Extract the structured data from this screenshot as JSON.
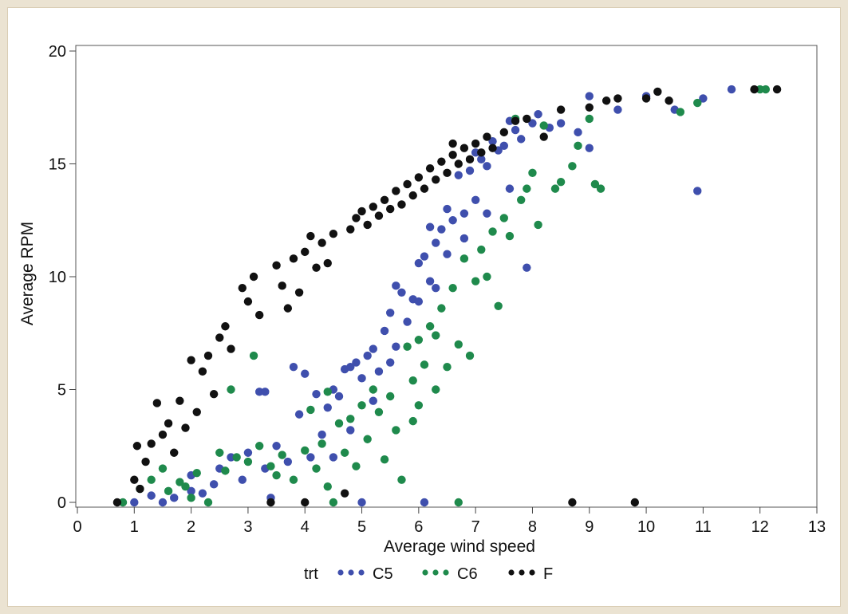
{
  "chart_data": {
    "type": "scatter",
    "title": "",
    "xlabel": "Average wind speed",
    "ylabel": "Average RPM",
    "xlim": [
      0,
      13
    ],
    "ylim": [
      0,
      20
    ],
    "x_ticks": [
      "0",
      "1",
      "2",
      "3",
      "4",
      "5",
      "6",
      "7",
      "8",
      "9",
      "10",
      "11",
      "12",
      "13"
    ],
    "y_ticks": [
      "0",
      "5",
      "10",
      "15",
      "20"
    ],
    "grid": false,
    "legend": {
      "title": "trt",
      "placement": "bottom",
      "entries": [
        "C5",
        "C6",
        "F"
      ]
    },
    "series": [
      {
        "name": "C5",
        "color": "#3f4fad",
        "points": [
          [
            1.0,
            0.0
          ],
          [
            1.3,
            0.3
          ],
          [
            1.5,
            0.0
          ],
          [
            1.7,
            0.2
          ],
          [
            2.0,
            0.5
          ],
          [
            2.2,
            0.4
          ],
          [
            2.4,
            0.8
          ],
          [
            2.5,
            1.5
          ],
          [
            2.7,
            2.0
          ],
          [
            2.9,
            1.0
          ],
          [
            3.0,
            2.2
          ],
          [
            3.3,
            1.5
          ],
          [
            3.4,
            0.2
          ],
          [
            3.5,
            2.5
          ],
          [
            3.7,
            1.8
          ],
          [
            3.8,
            6.0
          ],
          [
            3.2,
            4.9
          ],
          [
            3.9,
            3.9
          ],
          [
            4.0,
            5.7
          ],
          [
            4.1,
            2.0
          ],
          [
            4.2,
            4.8
          ],
          [
            4.3,
            3.0
          ],
          [
            4.4,
            4.2
          ],
          [
            4.5,
            5.0
          ],
          [
            4.6,
            4.7
          ],
          [
            4.7,
            5.9
          ],
          [
            4.8,
            6.0
          ],
          [
            4.9,
            6.2
          ],
          [
            5.0,
            5.5
          ],
          [
            5.1,
            6.5
          ],
          [
            5.2,
            6.8
          ],
          [
            5.3,
            5.8
          ],
          [
            5.4,
            7.6
          ],
          [
            5.5,
            8.4
          ],
          [
            5.5,
            6.2
          ],
          [
            5.6,
            9.6
          ],
          [
            5.7,
            9.3
          ],
          [
            5.8,
            8.0
          ],
          [
            5.9,
            9.0
          ],
          [
            6.0,
            10.6
          ],
          [
            6.0,
            8.9
          ],
          [
            6.1,
            10.9
          ],
          [
            6.2,
            9.8
          ],
          [
            6.2,
            12.2
          ],
          [
            6.3,
            11.5
          ],
          [
            6.4,
            12.1
          ],
          [
            6.5,
            11.0
          ],
          [
            6.5,
            13.0
          ],
          [
            6.6,
            12.5
          ],
          [
            6.7,
            14.5
          ],
          [
            6.8,
            12.8
          ],
          [
            6.9,
            14.7
          ],
          [
            7.0,
            13.4
          ],
          [
            7.0,
            15.5
          ],
          [
            7.1,
            15.2
          ],
          [
            7.2,
            14.9
          ],
          [
            7.3,
            16.0
          ],
          [
            7.4,
            15.6
          ],
          [
            7.5,
            15.8
          ],
          [
            7.6,
            16.9
          ],
          [
            7.7,
            16.5
          ],
          [
            7.8,
            16.1
          ],
          [
            7.9,
            10.4
          ],
          [
            8.0,
            16.8
          ],
          [
            8.1,
            17.2
          ],
          [
            8.3,
            16.6
          ],
          [
            8.5,
            16.8
          ],
          [
            8.8,
            16.4
          ],
          [
            9.0,
            15.7
          ],
          [
            9.0,
            18.0
          ],
          [
            9.5,
            17.4
          ],
          [
            10.0,
            18.0
          ],
          [
            10.5,
            17.4
          ],
          [
            10.9,
            13.8
          ],
          [
            11.0,
            17.9
          ],
          [
            11.5,
            18.3
          ],
          [
            3.3,
            4.9
          ],
          [
            2.0,
            1.2
          ],
          [
            5.0,
            0.0
          ],
          [
            6.1,
            0.0
          ],
          [
            4.5,
            2.0
          ],
          [
            4.8,
            3.2
          ],
          [
            5.2,
            4.5
          ],
          [
            5.6,
            6.9
          ],
          [
            6.3,
            9.5
          ],
          [
            6.8,
            11.7
          ],
          [
            7.2,
            12.8
          ],
          [
            7.6,
            13.9
          ]
        ]
      },
      {
        "name": "C6",
        "color": "#1f8a4c",
        "points": [
          [
            0.8,
            0.0
          ],
          [
            1.1,
            0.6
          ],
          [
            1.3,
            1.0
          ],
          [
            1.5,
            1.5
          ],
          [
            1.6,
            0.5
          ],
          [
            1.8,
            0.9
          ],
          [
            2.0,
            0.2
          ],
          [
            2.1,
            1.3
          ],
          [
            2.3,
            0.0
          ],
          [
            2.5,
            2.2
          ],
          [
            2.7,
            5.0
          ],
          [
            2.8,
            2.0
          ],
          [
            3.0,
            1.8
          ],
          [
            3.1,
            6.5
          ],
          [
            3.2,
            2.5
          ],
          [
            3.4,
            1.6
          ],
          [
            3.5,
            1.2
          ],
          [
            3.6,
            2.1
          ],
          [
            3.8,
            1.0
          ],
          [
            4.0,
            2.3
          ],
          [
            4.1,
            4.1
          ],
          [
            4.2,
            1.5
          ],
          [
            4.3,
            2.6
          ],
          [
            4.4,
            0.7
          ],
          [
            4.5,
            0.0
          ],
          [
            4.6,
            3.5
          ],
          [
            4.7,
            2.2
          ],
          [
            4.8,
            3.7
          ],
          [
            4.9,
            1.6
          ],
          [
            5.0,
            4.3
          ],
          [
            5.1,
            2.8
          ],
          [
            5.2,
            5.0
          ],
          [
            5.3,
            4.0
          ],
          [
            5.4,
            1.9
          ],
          [
            5.5,
            4.7
          ],
          [
            5.6,
            3.2
          ],
          [
            5.7,
            1.0
          ],
          [
            5.8,
            6.9
          ],
          [
            5.9,
            5.4
          ],
          [
            6.0,
            7.2
          ],
          [
            6.0,
            4.3
          ],
          [
            6.1,
            6.1
          ],
          [
            6.2,
            7.8
          ],
          [
            6.3,
            5.0
          ],
          [
            6.4,
            8.6
          ],
          [
            6.5,
            6.0
          ],
          [
            6.6,
            9.5
          ],
          [
            6.7,
            7.0
          ],
          [
            6.8,
            10.8
          ],
          [
            6.7,
            0.0
          ],
          [
            6.9,
            6.5
          ],
          [
            7.0,
            9.8
          ],
          [
            7.1,
            11.2
          ],
          [
            7.2,
            10.0
          ],
          [
            7.3,
            12.0
          ],
          [
            7.4,
            8.7
          ],
          [
            7.5,
            12.6
          ],
          [
            7.6,
            11.8
          ],
          [
            7.8,
            13.4
          ],
          [
            7.9,
            13.9
          ],
          [
            8.0,
            14.6
          ],
          [
            8.1,
            12.3
          ],
          [
            8.2,
            16.7
          ],
          [
            8.4,
            13.9
          ],
          [
            8.5,
            14.2
          ],
          [
            8.7,
            14.9
          ],
          [
            8.8,
            15.8
          ],
          [
            9.0,
            17.0
          ],
          [
            9.1,
            14.1
          ],
          [
            9.2,
            13.9
          ],
          [
            10.6,
            17.3
          ],
          [
            10.9,
            17.7
          ],
          [
            12.0,
            18.3
          ],
          [
            12.1,
            18.3
          ],
          [
            7.7,
            17.0
          ],
          [
            6.3,
            7.4
          ],
          [
            5.9,
            3.6
          ],
          [
            4.4,
            4.9
          ],
          [
            1.9,
            0.7
          ],
          [
            2.6,
            1.4
          ]
        ]
      },
      {
        "name": "F",
        "color": "#111111",
        "points": [
          [
            0.7,
            0.0
          ],
          [
            1.0,
            1.0
          ],
          [
            1.05,
            2.5
          ],
          [
            1.1,
            0.6
          ],
          [
            1.2,
            1.8
          ],
          [
            1.3,
            2.6
          ],
          [
            1.4,
            4.4
          ],
          [
            1.5,
            3.0
          ],
          [
            1.6,
            3.5
          ],
          [
            1.7,
            2.2
          ],
          [
            1.8,
            4.5
          ],
          [
            1.9,
            3.3
          ],
          [
            2.0,
            6.3
          ],
          [
            2.1,
            4.0
          ],
          [
            2.2,
            5.8
          ],
          [
            2.3,
            6.5
          ],
          [
            2.4,
            4.8
          ],
          [
            2.5,
            7.3
          ],
          [
            2.6,
            7.8
          ],
          [
            2.7,
            6.8
          ],
          [
            2.9,
            9.5
          ],
          [
            3.0,
            8.9
          ],
          [
            3.1,
            10.0
          ],
          [
            3.2,
            8.3
          ],
          [
            3.4,
            0.0
          ],
          [
            3.5,
            10.5
          ],
          [
            3.6,
            9.6
          ],
          [
            3.7,
            8.6
          ],
          [
            3.8,
            10.8
          ],
          [
            3.9,
            9.3
          ],
          [
            4.0,
            11.1
          ],
          [
            4.1,
            11.8
          ],
          [
            4.2,
            10.4
          ],
          [
            4.3,
            11.5
          ],
          [
            4.4,
            10.6
          ],
          [
            4.5,
            11.9
          ],
          [
            4.0,
            0.0
          ],
          [
            4.7,
            0.4
          ],
          [
            4.8,
            12.1
          ],
          [
            4.9,
            12.6
          ],
          [
            5.0,
            12.9
          ],
          [
            5.1,
            12.3
          ],
          [
            5.2,
            13.1
          ],
          [
            5.3,
            12.7
          ],
          [
            5.4,
            13.4
          ],
          [
            5.5,
            13.0
          ],
          [
            5.6,
            13.8
          ],
          [
            5.7,
            13.2
          ],
          [
            5.8,
            14.1
          ],
          [
            5.9,
            13.6
          ],
          [
            6.0,
            14.4
          ],
          [
            6.1,
            13.9
          ],
          [
            6.2,
            14.8
          ],
          [
            6.3,
            14.3
          ],
          [
            6.4,
            15.1
          ],
          [
            6.5,
            14.6
          ],
          [
            6.6,
            15.4
          ],
          [
            6.7,
            15.0
          ],
          [
            6.8,
            15.7
          ],
          [
            6.9,
            15.2
          ],
          [
            7.0,
            15.9
          ],
          [
            7.1,
            15.5
          ],
          [
            7.2,
            16.2
          ],
          [
            7.3,
            15.7
          ],
          [
            7.5,
            16.4
          ],
          [
            7.7,
            16.9
          ],
          [
            7.9,
            17.0
          ],
          [
            8.2,
            16.2
          ],
          [
            8.5,
            17.4
          ],
          [
            8.7,
            0.0
          ],
          [
            9.0,
            17.5
          ],
          [
            9.3,
            17.8
          ],
          [
            9.5,
            17.9
          ],
          [
            9.8,
            0.0
          ],
          [
            10.0,
            17.9
          ],
          [
            10.2,
            18.2
          ],
          [
            10.4,
            17.8
          ],
          [
            11.9,
            18.3
          ],
          [
            12.3,
            18.3
          ],
          [
            6.6,
            15.9
          ]
        ]
      }
    ]
  }
}
